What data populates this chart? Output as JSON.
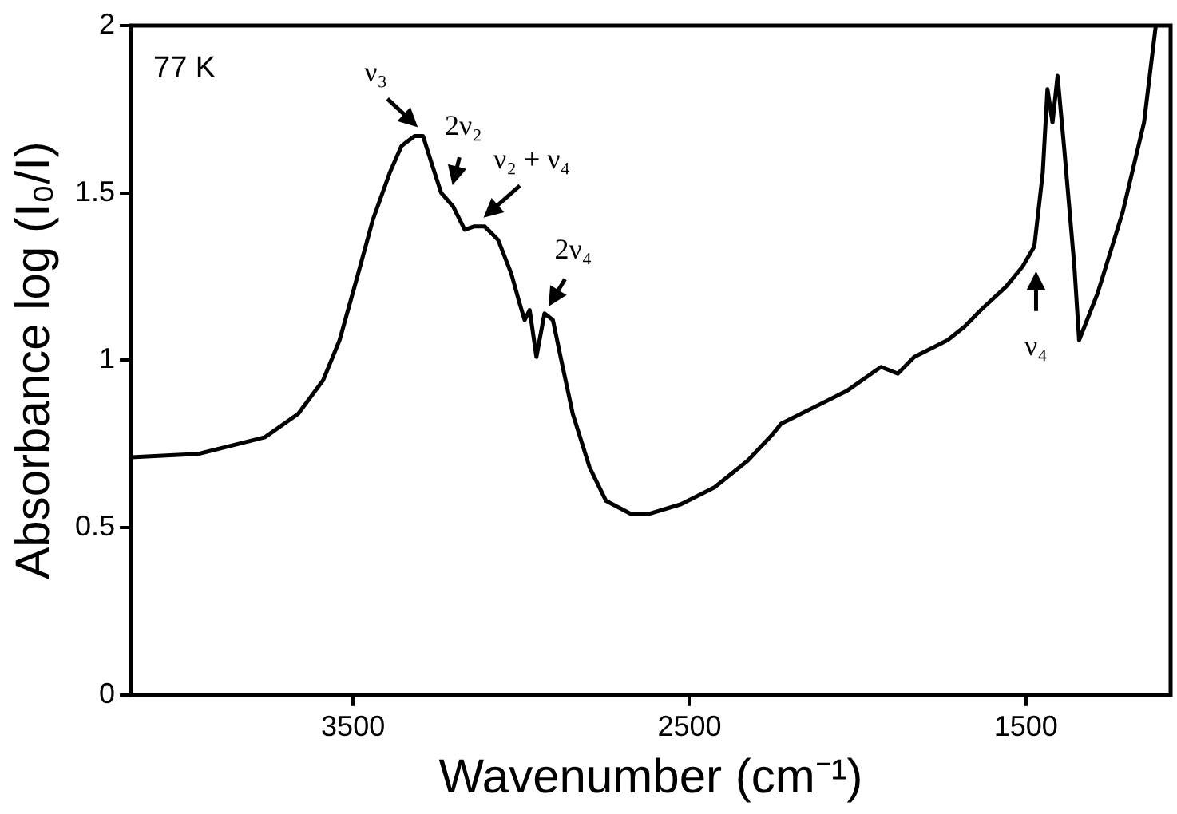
{
  "chart_data": {
    "type": "line",
    "xlabel": "Wavenumber (cm⁻¹)",
    "ylabel": "Absorbance log (I₀/I)",
    "x": [
      4160,
      3960,
      3762,
      3663,
      3589,
      3540,
      3490,
      3441,
      3391,
      3356,
      3317,
      3292,
      3267,
      3238,
      3203,
      3168,
      3139,
      3109,
      3069,
      3030,
      3005,
      2990,
      2975,
      2955,
      2931,
      2906,
      2881,
      2847,
      2797,
      2748,
      2673,
      2624,
      2525,
      2426,
      2327,
      2252,
      2228,
      2129,
      2030,
      1931,
      1881,
      1832,
      1733,
      1683,
      1634,
      1559,
      1510,
      1475,
      1450,
      1436,
      1421,
      1406,
      1386,
      1356,
      1342,
      1287,
      1213,
      1149,
      1114
    ],
    "series": [
      {
        "color": "#000000",
        "values": [
          0.71,
          0.72,
          0.77,
          0.84,
          0.94,
          1.06,
          1.24,
          1.42,
          1.56,
          1.64,
          1.67,
          1.67,
          1.59,
          1.5,
          1.46,
          1.39,
          1.4,
          1.4,
          1.36,
          1.26,
          1.17,
          1.12,
          1.15,
          1.01,
          1.14,
          1.12,
          1.0,
          0.84,
          0.68,
          0.58,
          0.54,
          0.54,
          0.57,
          0.62,
          0.7,
          0.78,
          0.81,
          0.86,
          0.91,
          0.98,
          0.96,
          1.01,
          1.06,
          1.1,
          1.15,
          1.22,
          1.28,
          1.34,
          1.56,
          1.81,
          1.71,
          1.85,
          1.63,
          1.28,
          1.06,
          1.2,
          1.44,
          1.71,
          2.0
        ]
      }
    ],
    "xlim": [
      4160,
      1070
    ],
    "xticks": [
      3500,
      2500,
      1500
    ],
    "ylim": [
      0,
      2
    ],
    "yticks": [
      0,
      0.5,
      1,
      1.5,
      2
    ],
    "marker": "none",
    "line_style": "solid",
    "legend": false,
    "grid": false,
    "annotations": [
      "77 K",
      {
        "text": "ν₃",
        "x": 3290,
        "y": 1.68
      },
      {
        "text": "2ν₂",
        "x": 3210,
        "y": 1.5
      },
      {
        "text": "ν₂ + ν₄",
        "x": 3130,
        "y": 1.41
      },
      {
        "text": "2ν₄",
        "x": 2931,
        "y": 1.14
      },
      {
        "text": "ν₄",
        "x": 1470,
        "y": 1.29
      }
    ]
  }
}
